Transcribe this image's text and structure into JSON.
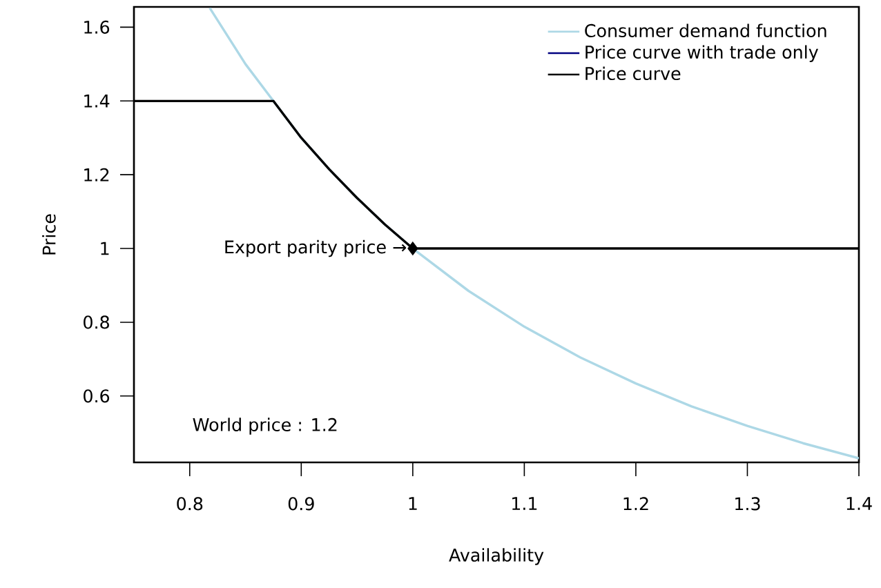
{
  "chart_data": {
    "type": "line",
    "xlabel": "Availability",
    "ylabel": "Price",
    "xlim": [
      0.75,
      1.4
    ],
    "ylim": [
      0.42,
      1.655
    ],
    "xticks": [
      0.8,
      0.9,
      1,
      1.1,
      1.2,
      1.3,
      1.4
    ],
    "yticks": [
      0.6,
      0.8,
      1,
      1.2,
      1.4,
      1.6
    ],
    "legend": "top right",
    "grid": false,
    "series": [
      {
        "name": "Consumer demand function",
        "color": "#add8e6",
        "x": [
          0.818,
          0.85,
          0.875,
          0.9,
          0.925,
          0.95,
          0.975,
          1.0,
          1.05,
          1.1,
          1.15,
          1.2,
          1.25,
          1.3,
          1.35,
          1.4
        ],
        "values": [
          1.652,
          1.5,
          1.4,
          1.3,
          1.215,
          1.137,
          1.065,
          1.0,
          0.885,
          0.788,
          0.705,
          0.634,
          0.572,
          0.519,
          0.472,
          0.431
        ]
      },
      {
        "name": "Price curve with trade only",
        "color": "#000080"
      },
      {
        "name": "Price curve",
        "color": "#000000",
        "x": [
          0.75,
          0.875,
          0.9,
          0.925,
          0.95,
          0.975,
          1.0,
          1.4
        ],
        "values": [
          1.4,
          1.4,
          1.3,
          1.215,
          1.137,
          1.065,
          1.0,
          1.0
        ]
      },
      {
        "color": "#000000",
        "type": "scatter",
        "marker": "diamond",
        "x": [
          1.0
        ],
        "values": [
          1.0
        ]
      }
    ],
    "annotations": [
      {
        "text": "Export parity price →",
        "x": 1.0,
        "y": 1.0
      },
      "World price : 1.2"
    ]
  }
}
